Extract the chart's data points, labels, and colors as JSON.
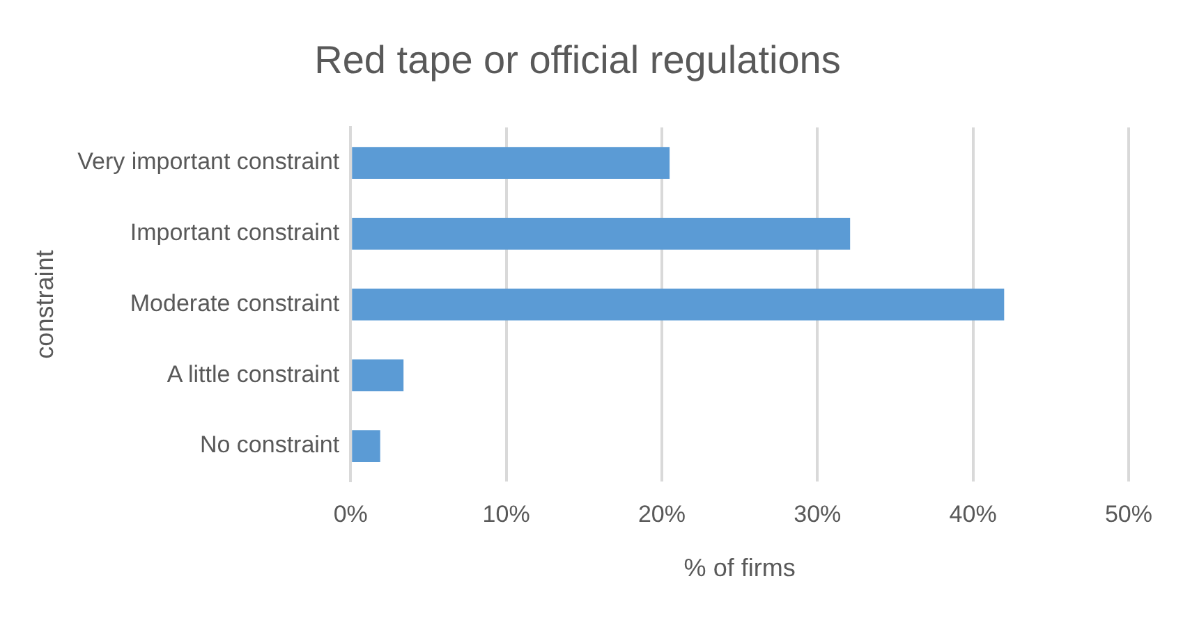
{
  "chart_data": {
    "type": "bar",
    "orientation": "horizontal",
    "title": "Red tape or official regulations",
    "xlabel": "% of firms",
    "ylabel": "constraint",
    "categories": [
      "Very important constraint",
      "Important constraint",
      "Moderate constraint",
      "A little constraint",
      "No constraint"
    ],
    "values": [
      20.5,
      32.1,
      42.0,
      3.4,
      1.9
    ],
    "color": "#5b9bd5",
    "xlim": [
      0,
      50
    ],
    "xticks": [
      {
        "value": 0,
        "label": "0%"
      },
      {
        "value": 10,
        "label": "10%"
      },
      {
        "value": 20,
        "label": "20%"
      },
      {
        "value": 30,
        "label": "30%"
      },
      {
        "value": 40,
        "label": "40%"
      },
      {
        "value": 50,
        "label": "50%"
      }
    ],
    "grid": "x",
    "legend": false
  }
}
